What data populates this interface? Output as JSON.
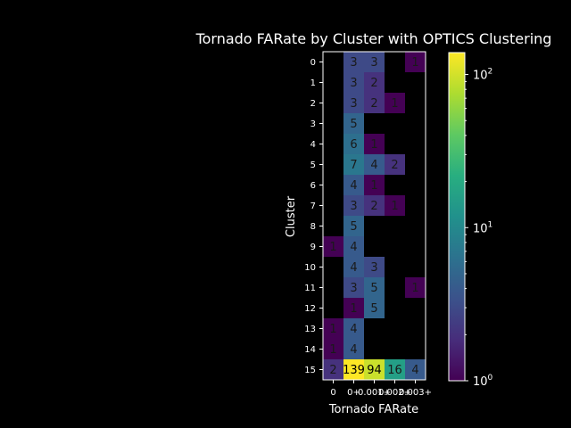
{
  "chart_data": {
    "type": "heatmap",
    "title": "Tornado FARate by Cluster with OPTICS Clustering",
    "xlabel": "Tornado FARate",
    "ylabel": "Cluster",
    "x_categories": [
      "0",
      "0+",
      "0.001+",
      "0.002+",
      "0.003+"
    ],
    "y_categories": [
      "0",
      "1",
      "2",
      "3",
      "4",
      "5",
      "6",
      "7",
      "8",
      "9",
      "10",
      "11",
      "12",
      "13",
      "14",
      "15"
    ],
    "values": [
      [
        null,
        3,
        3,
        null,
        1
      ],
      [
        null,
        3,
        2,
        null,
        null
      ],
      [
        null,
        3,
        2,
        1,
        null
      ],
      [
        null,
        5,
        null,
        null,
        null
      ],
      [
        null,
        6,
        1,
        null,
        null
      ],
      [
        null,
        7,
        4,
        2,
        null
      ],
      [
        null,
        4,
        1,
        null,
        null
      ],
      [
        null,
        3,
        2,
        1,
        null
      ],
      [
        null,
        5,
        null,
        null,
        null
      ],
      [
        1,
        4,
        null,
        null,
        null
      ],
      [
        null,
        4,
        3,
        null,
        null
      ],
      [
        null,
        3,
        5,
        null,
        1
      ],
      [
        null,
        1,
        5,
        null,
        null
      ],
      [
        1,
        4,
        null,
        null,
        null
      ],
      [
        1,
        4,
        null,
        null,
        null
      ],
      [
        2,
        139,
        94,
        16,
        4
      ]
    ],
    "colorbar": {
      "scale": "log",
      "range": [
        1,
        139
      ],
      "ticks": [
        {
          "value": 1,
          "base": "10",
          "exp": "0"
        },
        {
          "value": 10,
          "base": "10",
          "exp": "1"
        },
        {
          "value": 100,
          "base": "10",
          "exp": "2"
        }
      ],
      "colormap": "viridis"
    },
    "grid": false,
    "background": "#000000",
    "text_color": "#ffffff"
  }
}
